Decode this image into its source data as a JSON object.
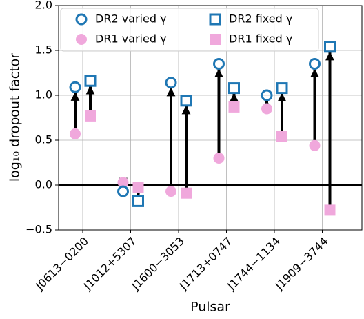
{
  "chart_data": {
    "type": "dropout",
    "x_label": "Pulsar",
    "y_label": "log₁₀ dropout factor",
    "categories": [
      "J0613−0200",
      "J1012+5307",
      "J1600−3053",
      "J1713+0747",
      "J1744−1134",
      "J1909−3744"
    ],
    "series": [
      {
        "name": "DR2 varied γ",
        "color": "#1f77b4",
        "marker": "circle",
        "filled": false,
        "values": [
          1.09,
          -0.07,
          1.14,
          1.35,
          1.0,
          1.35
        ]
      },
      {
        "name": "DR1 varied γ",
        "color": "#f0a8dc",
        "marker": "circle",
        "filled": true,
        "values": [
          0.57,
          0.03,
          -0.07,
          0.3,
          0.85,
          0.44
        ]
      },
      {
        "name": "DR2 fixed γ",
        "color": "#1f77b4",
        "marker": "square",
        "filled": false,
        "values": [
          1.16,
          -0.18,
          0.94,
          1.08,
          1.08,
          1.54
        ]
      },
      {
        "name": "DR1 fixed γ",
        "color": "#f0a8dc",
        "marker": "square",
        "filled": true,
        "values": [
          0.77,
          -0.03,
          -0.09,
          0.87,
          0.54,
          -0.28
        ]
      }
    ],
    "ylim": [
      -0.5,
      2.0
    ],
    "yticks": [
      {
        "value": -0.5,
        "label": "−0.5"
      },
      {
        "value": 0,
        "label": "0.0"
      },
      {
        "value": 0.5,
        "label": "0.5"
      },
      {
        "value": 1,
        "label": "1.0"
      },
      {
        "value": 1.5,
        "label": "1.5"
      },
      {
        "value": 2,
        "label": "2.0"
      }
    ],
    "grid": true
  }
}
